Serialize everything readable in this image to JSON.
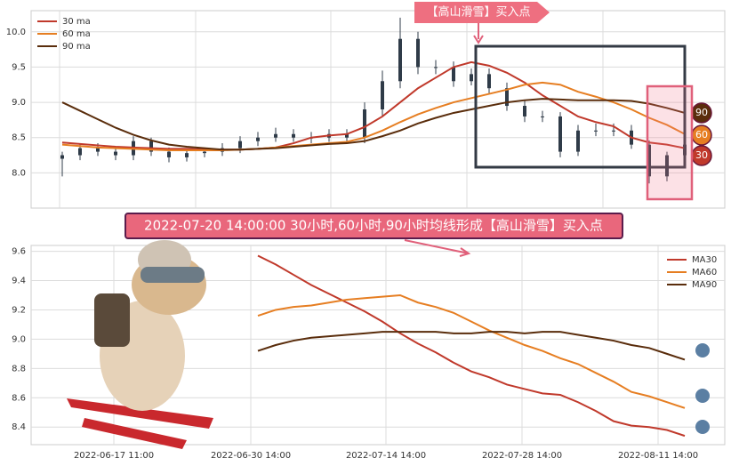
{
  "chart_data": [
    {
      "type": "candlestick",
      "open": [
        8.2,
        8.25,
        8.35,
        8.3,
        8.25,
        8.45,
        8.3,
        8.22,
        8.28,
        8.3,
        8.35,
        8.45,
        8.5,
        8.55,
        8.5,
        8.5,
        8.55,
        8.5,
        8.9,
        9.3,
        9.9,
        9.5,
        9.5,
        9.3,
        9.4,
        9.2,
        8.95,
        8.8,
        8.8,
        8.3,
        8.6,
        8.6,
        8.6,
        8.4,
        7.95,
        8.25
      ],
      "high": [
        8.3,
        8.42,
        8.42,
        8.36,
        8.52,
        8.5,
        8.36,
        8.32,
        8.36,
        8.42,
        8.52,
        8.58,
        8.64,
        8.62,
        8.58,
        8.62,
        8.62,
        9.0,
        9.45,
        10.2,
        10.0,
        9.6,
        9.58,
        9.48,
        9.48,
        9.28,
        9.02,
        8.88,
        8.86,
        8.68,
        8.7,
        8.7,
        8.68,
        8.46,
        8.3,
        8.48
      ],
      "low": [
        7.95,
        8.18,
        8.24,
        8.18,
        8.18,
        8.24,
        8.15,
        8.16,
        8.22,
        8.24,
        8.28,
        8.38,
        8.44,
        8.44,
        8.42,
        8.44,
        8.44,
        8.42,
        8.8,
        9.2,
        9.4,
        9.4,
        9.22,
        9.24,
        9.12,
        8.88,
        8.72,
        8.72,
        8.22,
        8.24,
        8.52,
        8.52,
        8.34,
        7.85,
        7.88,
        8.18
      ],
      "close": [
        8.25,
        8.35,
        8.3,
        8.25,
        8.45,
        8.3,
        8.22,
        8.28,
        8.3,
        8.35,
        8.45,
        8.5,
        8.55,
        8.5,
        8.5,
        8.55,
        8.5,
        8.9,
        9.3,
        9.9,
        9.5,
        9.5,
        9.3,
        9.4,
        9.2,
        8.95,
        8.8,
        8.8,
        8.3,
        8.6,
        8.6,
        8.6,
        8.4,
        7.95,
        8.25,
        8.4
      ],
      "candle_color": "#2f3b48",
      "series": [
        {
          "name": "30 ma",
          "color": "#c0392b",
          "values": [
            8.43,
            8.41,
            8.39,
            8.37,
            8.36,
            8.35,
            8.34,
            8.34,
            8.33,
            8.33,
            8.33,
            8.34,
            8.36,
            8.42,
            8.5,
            8.53,
            8.55,
            8.65,
            8.8,
            9.0,
            9.2,
            9.35,
            9.5,
            9.57,
            9.52,
            9.42,
            9.28,
            9.1,
            8.95,
            8.8,
            8.72,
            8.66,
            8.5,
            8.43,
            8.4,
            8.35
          ]
        },
        {
          "name": "60 ma",
          "color": "#e67e22",
          "values": [
            8.4,
            8.38,
            8.36,
            8.35,
            8.34,
            8.33,
            8.32,
            8.32,
            8.32,
            8.32,
            8.33,
            8.34,
            8.36,
            8.38,
            8.4,
            8.42,
            8.44,
            8.5,
            8.6,
            8.72,
            8.83,
            8.92,
            9.0,
            9.06,
            9.12,
            9.18,
            9.25,
            9.28,
            9.25,
            9.15,
            9.08,
            9.0,
            8.9,
            8.78,
            8.68,
            8.55
          ]
        },
        {
          "name": "90 ma",
          "color": "#5a2d0c",
          "values": [
            9.0,
            8.88,
            8.76,
            8.64,
            8.54,
            8.46,
            8.4,
            8.37,
            8.35,
            8.33,
            8.33,
            8.34,
            8.35,
            8.37,
            8.39,
            8.41,
            8.42,
            8.45,
            8.52,
            8.6,
            8.7,
            8.78,
            8.85,
            8.9,
            8.95,
            9.0,
            9.03,
            9.05,
            9.04,
            9.03,
            9.03,
            9.03,
            9.02,
            8.98,
            8.92,
            8.85
          ]
        }
      ],
      "ylim": [
        7.5,
        10.3
      ],
      "yticks": [
        {
          "value": 8,
          "label": "8.0"
        },
        8.5,
        {
          "value": 9,
          "label": "9.0"
        },
        9.5,
        {
          "value": 10,
          "label": "10.0"
        }
      ],
      "grid": true,
      "legend": "upper left",
      "annotation": "【高山滑雪】买入点",
      "end_labels": [
        "90",
        "60",
        "30"
      ]
    },
    {
      "type": "line",
      "title": "2022-07-20 14:00:00 30小时,60小时,90小时均线形成【高山滑雪】买入点",
      "x": [
        25.5,
        27.5,
        29.5,
        31.5,
        33.5,
        35.5,
        37.5,
        39.5,
        41.5,
        43.5,
        45.5,
        47.5,
        49.5,
        51.5,
        53.5,
        55.5,
        57.5,
        59.5,
        61.5,
        63.5,
        65.5,
        67.5,
        69.5,
        71.5,
        73.5
      ],
      "series": [
        {
          "name": "MA30",
          "color": "#c0392b",
          "values": [
            9.57,
            9.51,
            9.44,
            9.37,
            9.31,
            9.25,
            9.19,
            9.12,
            9.04,
            8.97,
            8.91,
            8.84,
            8.78,
            8.74,
            8.69,
            8.66,
            8.63,
            8.62,
            8.57,
            8.51,
            8.44,
            8.41,
            8.4,
            8.38,
            8.34
          ]
        },
        {
          "name": "MA60",
          "color": "#e67e22",
          "values": [
            9.16,
            9.2,
            9.22,
            9.23,
            9.25,
            9.27,
            9.28,
            9.29,
            9.3,
            9.25,
            9.22,
            9.18,
            9.12,
            9.06,
            9.01,
            8.96,
            8.92,
            8.87,
            8.83,
            8.77,
            8.71,
            8.64,
            8.61,
            8.57,
            8.53
          ]
        },
        {
          "name": "MA90",
          "color": "#5a2d0c",
          "values": [
            8.92,
            8.96,
            8.99,
            9.01,
            9.02,
            9.03,
            9.04,
            9.05,
            9.05,
            9.05,
            9.05,
            9.04,
            9.04,
            9.05,
            9.05,
            9.04,
            9.05,
            9.05,
            9.03,
            9.01,
            8.99,
            8.96,
            8.94,
            8.9,
            8.86
          ]
        }
      ],
      "xlim": [
        0,
        78
      ],
      "xticks": [
        {
          "value": 9.3,
          "label": "2022-06-17 11:00"
        },
        {
          "value": 24.7,
          "label": "2022-06-30 14:00"
        },
        {
          "value": 39.9,
          "label": "2022-07-14 14:00"
        },
        {
          "value": 55.2,
          "label": "2022-07-28 14:00"
        },
        {
          "value": 70.5,
          "label": "2022-08-11 14:00"
        }
      ],
      "ylim": [
        8.28,
        9.64
      ],
      "yticks": [
        8.4,
        8.6,
        8.8,
        {
          "value": 9,
          "label": "9.0"
        },
        9.2,
        9.4,
        9.6
      ],
      "grid": true,
      "legend": "upper right"
    }
  ]
}
